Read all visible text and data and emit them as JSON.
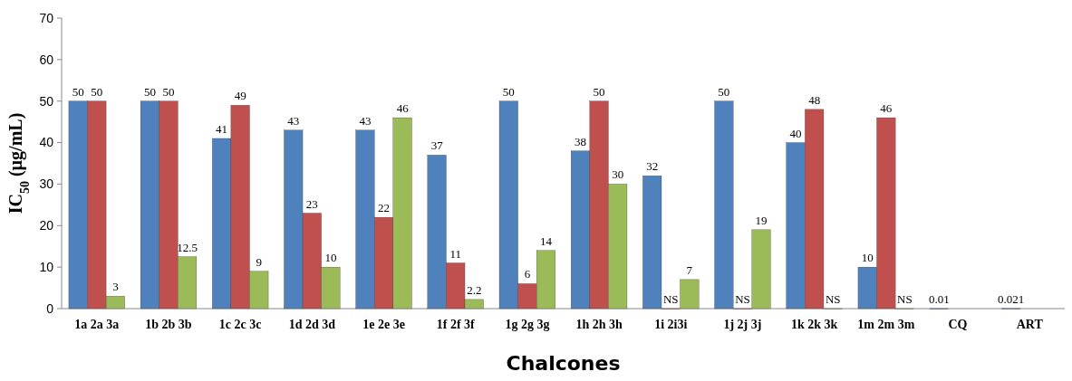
{
  "chart_data": {
    "type": "bar",
    "xlabel": "Chalcones",
    "ylabel": "IC$_{50}$ (µg/mL)",
    "categories": [
      "1a 2a 3a",
      "1b 2b 3b",
      "1c 2c 3c",
      "1d 2d 3d",
      "1e 2e 3e",
      "1f 2f 3f",
      "1g 2g 3g",
      "1h 2h 3h",
      "1i 2i3i",
      "1j 2j 3j",
      "1k 2k 3k",
      "1m 2m 3m",
      "CQ",
      "ART"
    ],
    "series": [
      {
        "color": "#4f81bd",
        "values": [
          50,
          50,
          41,
          43,
          43,
          37,
          50,
          38,
          32,
          50,
          40,
          10,
          0.01,
          0.021
        ],
        "value_labels": [
          "50",
          "50",
          "41",
          "43",
          "43",
          "37",
          "50",
          "38",
          "32",
          "50",
          "40",
          "10",
          "0.01",
          "0.021"
        ]
      },
      {
        "color": "#c0504d",
        "values": [
          50,
          50,
          49,
          23,
          22,
          11,
          6,
          50,
          0,
          0,
          48,
          46,
          null,
          null
        ],
        "value_labels": [
          "50",
          "50",
          "49",
          "23",
          "22",
          "11",
          "6",
          "50",
          "NS",
          "NS",
          "48",
          "46",
          null,
          null
        ]
      },
      {
        "color": "#9bbb59",
        "values": [
          3,
          12.5,
          9,
          10,
          46,
          2.2,
          14,
          30,
          7,
          19,
          0,
          0,
          null,
          null
        ],
        "value_labels": [
          "3",
          "12.5",
          "9",
          "10",
          "46",
          "2.2",
          "14",
          "30",
          "7",
          "19",
          "NS",
          "NS",
          null,
          null
        ]
      }
    ],
    "ylim": [
      0,
      70
    ],
    "yticks": [
      0,
      10,
      20,
      30,
      40,
      50,
      60,
      70
    ],
    "grid": false
  }
}
